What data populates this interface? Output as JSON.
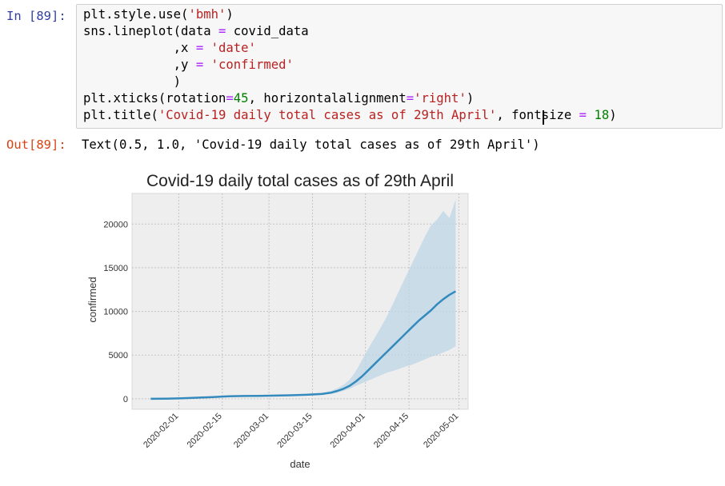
{
  "input_prompt": "In [89]:",
  "output_prompt": "Out[89]:",
  "code": {
    "l1": {
      "a": "plt.style.use(",
      "s": "'bmh'",
      "b": ")"
    },
    "l2": {
      "a": "sns.lineplot(data ",
      "op": "=",
      "b": " covid_data"
    },
    "l3": {
      "a": "            ,x ",
      "op": "=",
      "sp": " ",
      "s": "'date'"
    },
    "l4": {
      "a": "            ,y ",
      "op": "=",
      "sp": " ",
      "s": "'confirmed'"
    },
    "l5": {
      "a": "            )"
    },
    "l6": {
      "a": "plt.xticks(rotation",
      "op": "=",
      "n": "45",
      "b": ", horizontalalignment",
      "op2": "=",
      "s": "'right'",
      "c": ")"
    },
    "l7": {
      "a": "plt.title(",
      "s": "'Covid-19 daily total cases as of 29th April'",
      "b": ", fontsize ",
      "op": "=",
      "sp": " ",
      "n": "18",
      "c": ")"
    }
  },
  "output_text": "Text(0.5, 1.0, 'Covid-19 daily total cases as of 29th April')",
  "colors": {
    "line": "#348abd",
    "band": "#bcd6e6",
    "plot_bg": "#eeeeee",
    "grid": "#b2b2b2"
  },
  "chart_data": {
    "type": "line",
    "title": "Covid-19 daily total cases as of 29th April",
    "xlabel": "date",
    "ylabel": "confirmed",
    "x_tick_labels": [
      "2020-02-01",
      "2020-02-15",
      "2020-03-01",
      "2020-03-15",
      "2020-04-01",
      "2020-04-15",
      "2020-05-01"
    ],
    "x_tick_days": [
      9,
      23,
      38,
      52,
      69,
      83,
      99
    ],
    "y_ticks": [
      0,
      5000,
      10000,
      15000,
      20000
    ],
    "xlim_days": [
      -6,
      102
    ],
    "ylim": [
      -1200,
      23500
    ],
    "grid": true,
    "series": [
      {
        "day": [
          0,
          5,
          10,
          15,
          20,
          25,
          30,
          35,
          40,
          45,
          50,
          55,
          58,
          60,
          62,
          64,
          66,
          68,
          70,
          72,
          74,
          76,
          78,
          80,
          82,
          84,
          86,
          88,
          90,
          92,
          94,
          96,
          98
        ],
        "mean": [
          0,
          20,
          60,
          130,
          200,
          280,
          320,
          340,
          360,
          400,
          460,
          550,
          700,
          900,
          1150,
          1500,
          2000,
          2600,
          3300,
          4000,
          4700,
          5400,
          6100,
          6800,
          7500,
          8200,
          8900,
          9500,
          10100,
          10800,
          11400,
          11900,
          12300
        ],
        "lower": [
          0,
          10,
          40,
          90,
          150,
          220,
          260,
          280,
          300,
          330,
          380,
          450,
          550,
          700,
          900,
          1150,
          1500,
          1800,
          2100,
          2400,
          2700,
          3000,
          3200,
          3450,
          3700,
          3900,
          4200,
          4500,
          4800,
          5000,
          5300,
          5600,
          6000
        ],
        "upper": [
          0,
          30,
          80,
          170,
          250,
          340,
          380,
          400,
          420,
          470,
          560,
          700,
          900,
          1200,
          1600,
          2200,
          3200,
          4500,
          5800,
          7000,
          8200,
          9500,
          11000,
          12500,
          14000,
          15500,
          17000,
          18500,
          19800,
          20500,
          21500,
          20700,
          22800
        ]
      }
    ]
  }
}
